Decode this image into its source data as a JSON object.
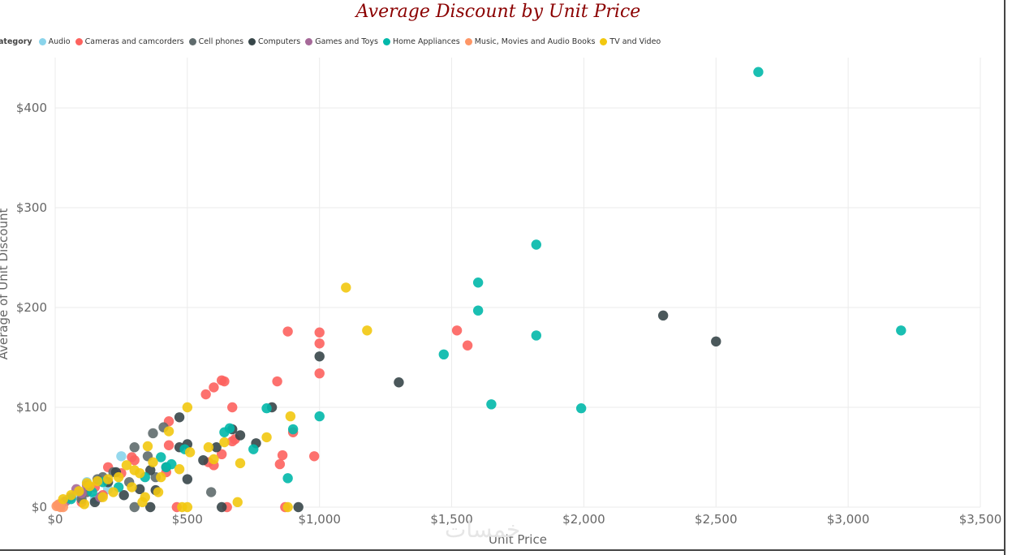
{
  "chart_data": {
    "type": "scatter",
    "title": "Average Discount by Unit Price",
    "xlabel": "Unit Price",
    "ylabel": "Average of Unit Discount",
    "legend_title": "Category",
    "legend_title_visible": "ategory",
    "legend_position": "top-left",
    "grid": true,
    "xlim": [
      0,
      3500
    ],
    "ylim": [
      0,
      440
    ],
    "x_ticks": [
      0,
      500,
      1000,
      1500,
      2000,
      2500,
      3000,
      3500
    ],
    "x_tick_labels": [
      "$0",
      "$500",
      "$1,000",
      "$1,500",
      "$2,000",
      "$2,500",
      "$3,000",
      "$3,500"
    ],
    "y_ticks": [
      0,
      100,
      200,
      300,
      400
    ],
    "y_tick_labels": [
      "$0",
      "$100",
      "$200",
      "$300",
      "$400"
    ],
    "series": [
      {
        "name": "Audio",
        "color": "#8ad4eb",
        "points": [
          [
            250,
            51
          ],
          [
            120,
            25
          ],
          [
            80,
            12
          ],
          [
            200,
            18
          ],
          [
            30,
            5
          ],
          [
            150,
            8
          ]
        ]
      },
      {
        "name": "Cameras and camcorders",
        "color": "#fd625e",
        "points": [
          [
            880,
            176
          ],
          [
            1000,
            175
          ],
          [
            1000,
            164
          ],
          [
            1000,
            134
          ],
          [
            630,
            127
          ],
          [
            640,
            126
          ],
          [
            840,
            126
          ],
          [
            600,
            120
          ],
          [
            570,
            113
          ],
          [
            670,
            100
          ],
          [
            430,
            86
          ],
          [
            900,
            75
          ],
          [
            680,
            68
          ],
          [
            670,
            66
          ],
          [
            430,
            62
          ],
          [
            630,
            53
          ],
          [
            860,
            52
          ],
          [
            980,
            51
          ],
          [
            290,
            50
          ],
          [
            300,
            47
          ],
          [
            580,
            45
          ],
          [
            600,
            42
          ],
          [
            850,
            43
          ],
          [
            200,
            40
          ],
          [
            420,
            35
          ],
          [
            250,
            34
          ],
          [
            1520,
            177
          ],
          [
            1560,
            162
          ],
          [
            460,
            0
          ],
          [
            650,
            0
          ],
          [
            870,
            0
          ],
          [
            180,
            12
          ],
          [
            150,
            20
          ],
          [
            100,
            5
          ]
        ]
      },
      {
        "name": "Cell phones",
        "color": "#5f6b6d",
        "points": [
          [
            410,
            80
          ],
          [
            370,
            74
          ],
          [
            300,
            60
          ],
          [
            350,
            51
          ],
          [
            180,
            30
          ],
          [
            590,
            15
          ],
          [
            280,
            25
          ],
          [
            380,
            30
          ],
          [
            220,
            35
          ],
          [
            160,
            28
          ],
          [
            120,
            15
          ],
          [
            100,
            8
          ],
          [
            300,
            0
          ],
          [
            420,
            40
          ]
        ]
      },
      {
        "name": "Computers",
        "color": "#374649",
        "points": [
          [
            1000,
            151
          ],
          [
            1300,
            125
          ],
          [
            2300,
            192
          ],
          [
            2500,
            166
          ],
          [
            820,
            100
          ],
          [
            470,
            90
          ],
          [
            670,
            78
          ],
          [
            700,
            72
          ],
          [
            760,
            64
          ],
          [
            500,
            63
          ],
          [
            470,
            60
          ],
          [
            610,
            60
          ],
          [
            560,
            47
          ],
          [
            230,
            35
          ],
          [
            360,
            37
          ],
          [
            380,
            17
          ],
          [
            320,
            18
          ],
          [
            630,
            0
          ],
          [
            920,
            0
          ],
          [
            360,
            0
          ],
          [
            500,
            28
          ],
          [
            200,
            25
          ],
          [
            150,
            5
          ],
          [
            260,
            12
          ]
        ]
      },
      {
        "name": "Games and Toys",
        "color": "#a66999",
        "points": [
          [
            80,
            18
          ],
          [
            60,
            10
          ],
          [
            120,
            22
          ],
          [
            40,
            6
          ],
          [
            100,
            14
          ],
          [
            170,
            10
          ]
        ]
      },
      {
        "name": "Home Appliances",
        "color": "#01b8aa",
        "points": [
          [
            2660,
            436
          ],
          [
            1820,
            263
          ],
          [
            1600,
            225
          ],
          [
            1600,
            197
          ],
          [
            1820,
            172
          ],
          [
            3200,
            177
          ],
          [
            1470,
            153
          ],
          [
            1650,
            103
          ],
          [
            1990,
            99
          ],
          [
            1000,
            91
          ],
          [
            800,
            99
          ],
          [
            900,
            78
          ],
          [
            660,
            79
          ],
          [
            640,
            75
          ],
          [
            750,
            58
          ],
          [
            490,
            58
          ],
          [
            440,
            43
          ],
          [
            400,
            50
          ],
          [
            880,
            29
          ],
          [
            180,
            25
          ],
          [
            140,
            15
          ],
          [
            60,
            8
          ],
          [
            240,
            20
          ],
          [
            340,
            30
          ],
          [
            420,
            40
          ],
          [
            20,
            2
          ]
        ]
      },
      {
        "name": "Music, Movies and Audio Books",
        "color": "#fe9666",
        "points": [
          [
            10,
            2
          ],
          [
            20,
            0
          ],
          [
            5,
            1
          ],
          [
            15,
            3
          ],
          [
            30,
            0
          ]
        ]
      },
      {
        "name": "TV and Video",
        "color": "#f2c80f",
        "points": [
          [
            1100,
            220
          ],
          [
            1180,
            177
          ],
          [
            500,
            100
          ],
          [
            890,
            91
          ],
          [
            430,
            76
          ],
          [
            800,
            70
          ],
          [
            700,
            44
          ],
          [
            350,
            61
          ],
          [
            640,
            65
          ],
          [
            580,
            60
          ],
          [
            510,
            55
          ],
          [
            600,
            48
          ],
          [
            370,
            45
          ],
          [
            470,
            38
          ],
          [
            300,
            37
          ],
          [
            270,
            42
          ],
          [
            240,
            30
          ],
          [
            320,
            34
          ],
          [
            400,
            30
          ],
          [
            200,
            28
          ],
          [
            160,
            26
          ],
          [
            130,
            21
          ],
          [
            120,
            24
          ],
          [
            90,
            16
          ],
          [
            60,
            12
          ],
          [
            30,
            8
          ],
          [
            390,
            15
          ],
          [
            290,
            20
          ],
          [
            340,
            10
          ],
          [
            480,
            0
          ],
          [
            500,
            0
          ],
          [
            690,
            5
          ],
          [
            880,
            0
          ],
          [
            330,
            5
          ],
          [
            110,
            3
          ],
          [
            180,
            10
          ],
          [
            220,
            15
          ]
        ]
      }
    ]
  },
  "watermark": "خمسات"
}
